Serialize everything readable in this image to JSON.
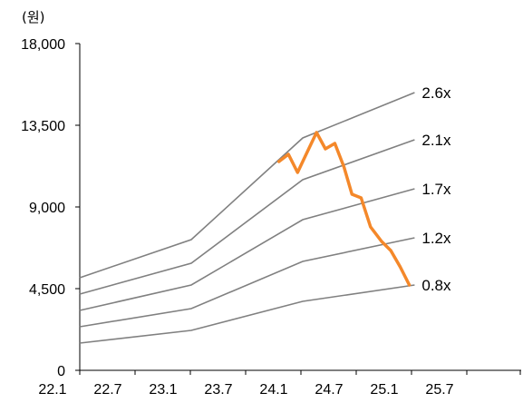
{
  "chart_data": {
    "type": "line",
    "unit_label": "(원)",
    "x_tick_labels": [
      "22.1",
      "22.7",
      "23.1",
      "23.7",
      "24.1",
      "24.7",
      "25.1",
      "25.7"
    ],
    "y_tick_labels": [
      "0",
      "4,500",
      "9,000",
      "13,500",
      "18,000"
    ],
    "ylim": [
      0,
      18000
    ],
    "grid": false,
    "band_color": "#808080",
    "price_color": "#F4882A",
    "bands": [
      {
        "name": "2.6x",
        "values": [
          {
            "x": "2022-01",
            "y": 5100
          },
          {
            "x": "2023-01",
            "y": 7200
          },
          {
            "x": "2024-01",
            "y": 12800
          },
          {
            "x": "2025-01",
            "y": 15300
          }
        ]
      },
      {
        "name": "2.1x",
        "values": [
          {
            "x": "2022-01",
            "y": 4200
          },
          {
            "x": "2023-01",
            "y": 5900
          },
          {
            "x": "2024-01",
            "y": 10500
          },
          {
            "x": "2025-01",
            "y": 12700
          }
        ]
      },
      {
        "name": "1.7x",
        "values": [
          {
            "x": "2022-01",
            "y": 3300
          },
          {
            "x": "2023-01",
            "y": 4700
          },
          {
            "x": "2024-01",
            "y": 8300
          },
          {
            "x": "2025-01",
            "y": 10000
          }
        ]
      },
      {
        "name": "1.2x",
        "values": [
          {
            "x": "2022-01",
            "y": 2400
          },
          {
            "x": "2023-01",
            "y": 3400
          },
          {
            "x": "2024-01",
            "y": 6000
          },
          {
            "x": "2025-01",
            "y": 7300
          }
        ]
      },
      {
        "name": "0.8x",
        "values": [
          {
            "x": "2022-01",
            "y": 1500
          },
          {
            "x": "2023-01",
            "y": 2200
          },
          {
            "x": "2024-01",
            "y": 3800
          },
          {
            "x": "2025-01",
            "y": 4700
          }
        ]
      }
    ],
    "price": [
      {
        "x": "2023-10-15",
        "y": 11500
      },
      {
        "x": "2023-11-15",
        "y": 11900
      },
      {
        "x": "2023-12-15",
        "y": 10900
      },
      {
        "x": "2024-01-15",
        "y": 12000
      },
      {
        "x": "2024-02-15",
        "y": 13100
      },
      {
        "x": "2024-03-15",
        "y": 12200
      },
      {
        "x": "2024-04-15",
        "y": 12500
      },
      {
        "x": "2024-05-15",
        "y": 11200
      },
      {
        "x": "2024-06-10",
        "y": 9700
      },
      {
        "x": "2024-07-10",
        "y": 9500
      },
      {
        "x": "2024-08-10",
        "y": 7900
      },
      {
        "x": "2024-09-15",
        "y": 7100
      },
      {
        "x": "2024-10-15",
        "y": 6600
      },
      {
        "x": "2024-11-15",
        "y": 5700
      },
      {
        "x": "2024-12-15",
        "y": 4700
      }
    ]
  }
}
